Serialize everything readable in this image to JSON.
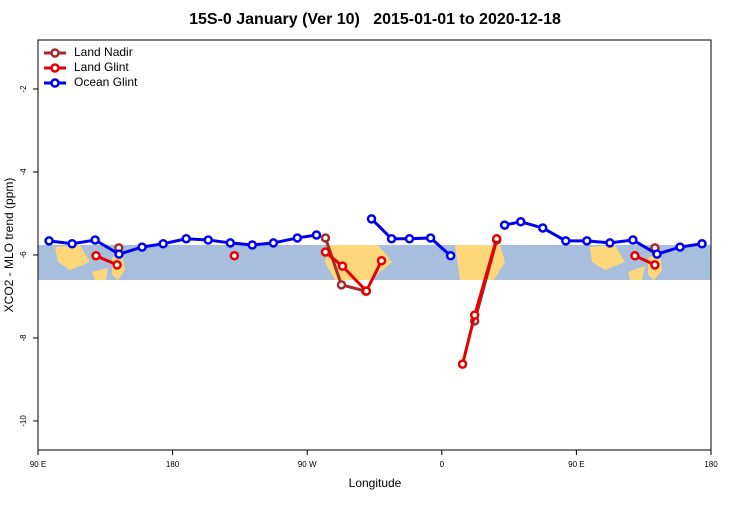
{
  "chart_data": {
    "type": "line",
    "title": "15S-0 January (Ver 10)   2015-01-01 to 2020-12-18",
    "xlabel": "Longitude",
    "ylabel": "XCO2 - MLO trend (ppm)",
    "xlim": [
      90,
      540
    ],
    "xticks": [
      {
        "value": 90,
        "label": "90 E"
      },
      180,
      {
        "value": 270,
        "label": "90 W"
      },
      {
        "value": 360,
        "label": "0"
      },
      {
        "value": 450,
        "label": "90 E"
      },
      {
        "value": 540,
        "label": "180"
      }
    ],
    "ylim": [
      -10.7,
      -0.82
    ],
    "yticks": [
      -10,
      -8,
      -6,
      -4,
      -2
    ],
    "legend": "top-left",
    "series": [
      {
        "name": "Land Nadir",
        "color": "#a52a2a",
        "x": [
          144,
          null,
          282.2,
          292.9,
          309,
          null,
          382,
          396.7,
          null,
          502.5
        ],
        "values": [
          -5.83,
          null,
          -5.59,
          -6.72,
          -6.87,
          null,
          -7.59,
          -5.64,
          null,
          -5.83
        ]
      },
      {
        "name": "Land Glint",
        "color": "#e60000",
        "x": [
          128.8,
          142.9,
          null,
          221.3,
          null,
          282.2,
          293.6,
          309.6,
          319.7,
          null,
          373.9,
          382,
          396.7,
          null,
          489.1,
          502.5
        ],
        "values": [
          -6.02,
          -6.24,
          null,
          -6.02,
          null,
          -5.93,
          -6.27,
          -6.87,
          -6.14,
          null,
          -8.63,
          -7.45,
          -5.61,
          null,
          -6.02,
          -6.24
        ]
      },
      {
        "name": "Ocean Glint",
        "color": "#0000ee",
        "x": [
          97.4,
          112.8,
          128.2,
          144.2,
          159.6,
          173.7,
          189.1,
          203.8,
          218.6,
          233.3,
          247.4,
          263.4,
          276.2,
          null,
          313,
          326.4,
          338.4,
          352.5,
          365.9,
          null,
          402,
          412.8,
          427.5,
          442.9,
          457,
          472.4,
          487.8,
          503.9,
          519.3,
          534
        ],
        "values": [
          -5.66,
          -5.73,
          -5.64,
          -5.98,
          -5.81,
          -5.73,
          -5.61,
          -5.64,
          -5.71,
          -5.76,
          -5.71,
          -5.59,
          -5.52,
          null,
          -5.13,
          -5.61,
          -5.61,
          -5.59,
          -6.02,
          null,
          -5.28,
          -5.2,
          -5.35,
          -5.66,
          -5.66,
          -5.71,
          -5.64,
          -5.98,
          -5.81,
          -5.73
        ]
      }
    ]
  }
}
